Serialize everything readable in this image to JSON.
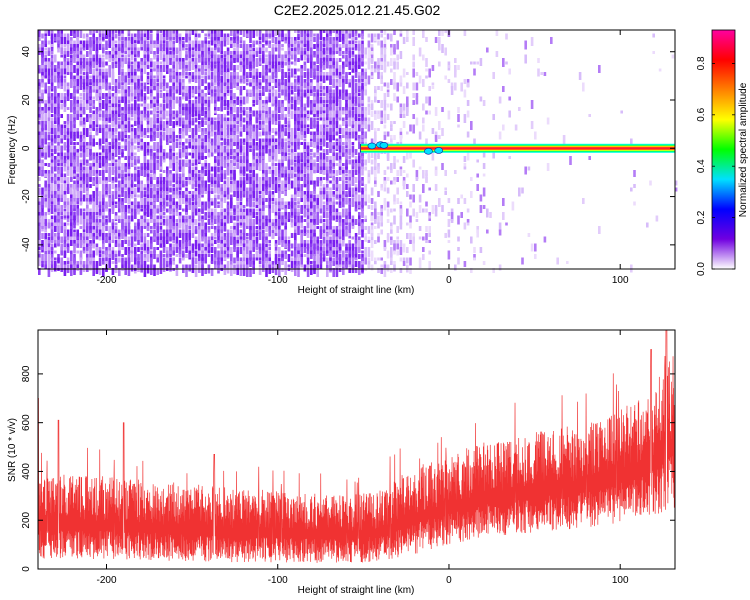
{
  "title": "C2E2.2025.012.21.45.G02",
  "chart_data": [
    {
      "type": "heatmap",
      "xlabel": "Height of straight line (km)",
      "ylabel": "Frequency (Hz)",
      "xlim": [
        -240,
        132
      ],
      "ylim": [
        -50,
        49
      ],
      "xticks": [
        -200,
        -100,
        0,
        100
      ],
      "yticks": [
        -40,
        -20,
        0,
        20,
        40
      ],
      "colorbar": {
        "label": "Normalized spectral amplitude",
        "range": [
          0,
          0.93
        ],
        "ticks": [
          0,
          0.2,
          0.4,
          0.6,
          0.8
        ],
        "colormap": [
          "#ffffff",
          "#7000e0",
          "#0000ff",
          "#00e0ff",
          "#00ff00",
          "#ffff00",
          "#ff8000",
          "#ff0000",
          "#ff00a0"
        ]
      },
      "signal_line": {
        "frequency": 0,
        "x_start": -52,
        "x_end": 132,
        "peak_amplitude": 0.93
      },
      "noise_edge_x": -50
    },
    {
      "type": "line",
      "xlabel": "Height of straight line (km)",
      "ylabel": "SNR (10 * v/v)",
      "xlim": [
        -240,
        132
      ],
      "ylim": [
        0,
        980
      ],
      "xticks": [
        -200,
        -100,
        0,
        100
      ],
      "yticks": [
        0,
        200,
        400,
        600,
        800
      ],
      "color": "#f03232",
      "envelope": {
        "x": [
          -240,
          -200,
          -150,
          -100,
          -60,
          -40,
          -20,
          0,
          20,
          50,
          80,
          100,
          120,
          132
        ],
        "low": [
          40,
          40,
          30,
          25,
          25,
          30,
          60,
          100,
          130,
          150,
          170,
          190,
          220,
          250
        ],
        "high": [
          400,
          380,
          350,
          320,
          300,
          330,
          420,
          470,
          520,
          560,
          600,
          650,
          760,
          900
        ]
      },
      "spikes": [
        {
          "x": -240,
          "y": 700
        },
        {
          "x": -228,
          "y": 610
        },
        {
          "x": -190,
          "y": 600
        },
        {
          "x": -137,
          "y": 470
        },
        {
          "x": 118,
          "y": 900
        },
        {
          "x": 127,
          "y": 980
        }
      ]
    }
  ]
}
